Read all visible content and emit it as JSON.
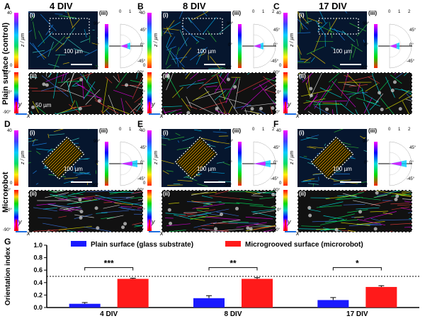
{
  "panels": [
    {
      "letter": "A",
      "title": "4 DIV"
    },
    {
      "letter": "B",
      "title": "8 DIV"
    },
    {
      "letter": "C",
      "title": "17 DIV"
    },
    {
      "letter": "D",
      "title": ""
    },
    {
      "letter": "E",
      "title": ""
    },
    {
      "letter": "F",
      "title": ""
    }
  ],
  "row_labels": {
    "top": "Plain surface (control)",
    "bottom": "Microrobot"
  },
  "sub_labels": {
    "i": "(i)",
    "ii": "(ii)",
    "iii": "(iii)"
  },
  "colorbar": {
    "z_top": "40",
    "z_bottom": "0",
    "z_label": "z / µm",
    "angle_top": "90°",
    "angle_mid": "0°",
    "angle_bottom": "-90°"
  },
  "polar": {
    "r_ticks": [
      "0",
      "1",
      "2"
    ],
    "angle_labels": [
      "90°",
      "45°",
      "0°",
      "-45°",
      "-90°"
    ]
  },
  "scale_bars": {
    "top": "100 µm",
    "small": "50 µm"
  },
  "axes": {
    "x": "x",
    "y": "y"
  },
  "panel_G": {
    "letter": "G"
  },
  "chart_data": {
    "type": "bar",
    "categories": [
      "4 DIV",
      "8 DIV",
      "17 DIV"
    ],
    "series": [
      {
        "name": "Plain surface (glass substrate)",
        "color": "#1a1aff",
        "values": [
          0.06,
          0.15,
          0.12
        ],
        "errors": [
          0.02,
          0.04,
          0.04
        ]
      },
      {
        "name": "Microgrooved surface (microrobot)",
        "color": "#ff1a1a",
        "values": [
          0.46,
          0.46,
          0.33
        ],
        "errors": [
          0.01,
          0.02,
          0.02
        ]
      }
    ],
    "ylabel": "Orientation index",
    "ylim": [
      0,
      1.0
    ],
    "yticks": [
      "0.0",
      "0.2",
      "0.4",
      "0.6",
      "0.8",
      "1.0"
    ],
    "reference_line": 0.5,
    "significance": [
      "***",
      "**",
      "*"
    ]
  }
}
